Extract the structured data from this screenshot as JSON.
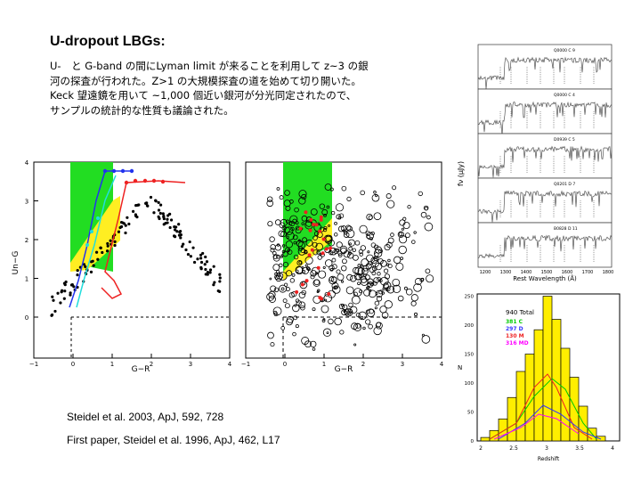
{
  "slide": {
    "title": "U-dropout LBGs:",
    "lines": [
      "U-　と G-band の間にLyman limit が来ることを利用して z~3 の銀",
      "河の探査が行われた。Z>1 の大規模探査の道を始めて切り開いた。",
      "Keck 望遠鏡を用いて ~1,000 個近い銀河が分光同定されたので、",
      "サンプルの統計的な性質も議論された。"
    ],
    "citation_1": "Steidel et al. 2003, ApJ, 592, 728",
    "citation_2": "First paper, Steidel et al. 1996, ApJ, 462, L17"
  },
  "figures": {
    "left_plot": {
      "xlabel": "G−R",
      "ylabel": "Un−G",
      "xticks": [
        "−1",
        "0",
        "1",
        "2",
        "3",
        "4"
      ],
      "yticks": [
        "0",
        "1",
        "2",
        "3",
        "4"
      ]
    },
    "middle_plot": {
      "xlabel": "G−R",
      "xticks": [
        "−1",
        "0",
        "1",
        "2",
        "3",
        "4"
      ]
    },
    "spectra": {
      "ylabel": "fν (μJy)",
      "xlabel": "Rest Wavelength (Å)",
      "xticks": [
        "1200",
        "1300",
        "1400",
        "1500",
        "1600",
        "1700",
        "1800"
      ],
      "panel_labels": [
        "Q0000 C 9",
        "Q0000 C 4",
        "D0939 C 5",
        "Q0201 D 7",
        "B0828 D 11"
      ]
    },
    "histogram": {
      "total_label": "940 Total",
      "legend": [
        {
          "label": "381 C",
          "color": "#00cc00"
        },
        {
          "label": "297 D",
          "color": "#3333ff"
        },
        {
          "label": "130 M",
          "color": "#ee2222"
        },
        {
          "label": "316 MD",
          "color": "#ff00ff"
        }
      ],
      "xlabel": "Redshift",
      "ylabel": "N",
      "xticks": [
        "2",
        "2.5",
        "3",
        "3.5",
        "4"
      ],
      "yticks": [
        "0",
        "50",
        "100",
        "150",
        "200",
        "250"
      ],
      "fill_color": "#ffee00"
    }
  }
}
